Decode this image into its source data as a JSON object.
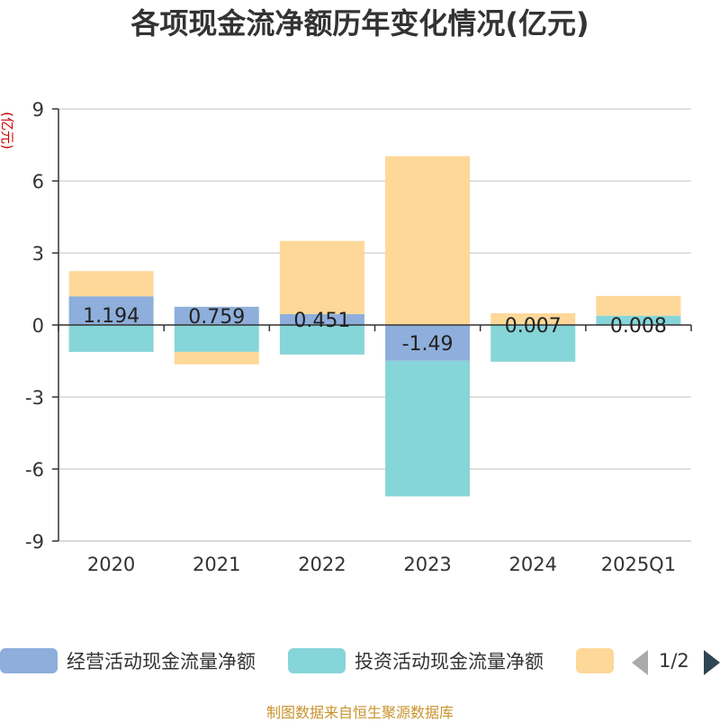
{
  "chart_data": {
    "type": "bar",
    "stacked": true,
    "title": "各项现金流净额历年变化情况(亿元)",
    "ylabel": "(亿元)",
    "categories": [
      "2020",
      "2021",
      "2022",
      "2023",
      "2024",
      "2025Q1"
    ],
    "ylim": [
      -9,
      9
    ],
    "yticks": [
      9,
      6,
      3,
      0,
      -3,
      -6,
      -9
    ],
    "grid": true,
    "series": [
      {
        "name": "经营活动现金流量净额",
        "color": "#8eaedb",
        "values": [
          1.194,
          0.759,
          0.451,
          -1.49,
          0.007,
          0.008
        ]
      },
      {
        "name": "投资活动现金流量净额",
        "color": "#86d5d8",
        "values": [
          -1.12,
          -1.12,
          -1.23,
          -5.65,
          -1.53,
          0.38
        ]
      },
      {
        "name": "",
        "color": "#fdd898",
        "values": [
          1.05,
          -0.52,
          3.05,
          7.03,
          0.48,
          0.82
        ]
      }
    ],
    "data_labels": [
      "1.194",
      "0.759",
      "0.451",
      "-1.49",
      "0.007",
      "0.008"
    ],
    "legend_position": "bottom"
  },
  "legend": {
    "item1": "经营活动现金流量净额",
    "item2": "投资活动现金流量净额",
    "page": "1/2"
  },
  "footer": "制图数据来自恒生聚源数据库"
}
